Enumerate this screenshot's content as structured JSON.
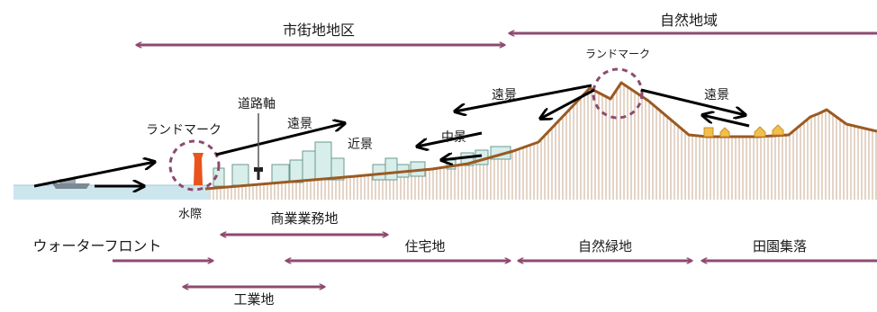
{
  "zones_top": {
    "urban": "市街地地区",
    "natural": "自然地域"
  },
  "scenery": {
    "landmark_left": "ランドマーク",
    "landmark_right": "ランドマーク",
    "road_axis": "道路軸",
    "far_view_left": "遠景",
    "near_view": "近景",
    "mid_view": "中景",
    "far_view_center": "遠景",
    "far_view_right": "遠景",
    "waterside": "水際"
  },
  "zones_bottom": {
    "waterfront": "ウォーターフロント",
    "commercial": "商業業務地",
    "residential": "住宅地",
    "natural_green": "自然緑地",
    "rural_village": "田園集落",
    "industrial": "工業地"
  },
  "colors": {
    "zone_arrow": "#8e4a6f",
    "view_arrow": "#000000",
    "terrain_line": "#9b5a22",
    "hatch": "#c8a88c",
    "water": "#cde6ee",
    "building_fill": "#d8eeea",
    "building_stroke": "#6a9a90",
    "landmark_tower": "#e8541c",
    "house": "#f2c04a"
  }
}
